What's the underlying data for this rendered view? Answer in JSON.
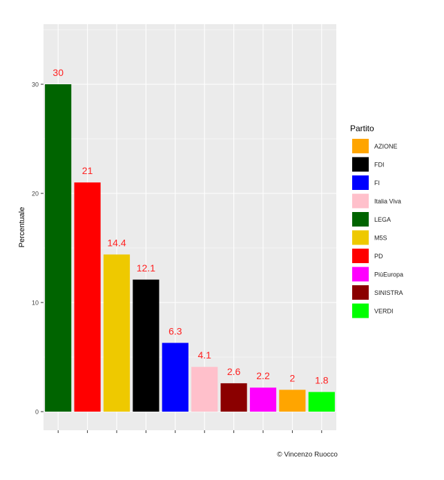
{
  "chart_data": {
    "type": "bar",
    "categories": [
      "LEGA",
      "PD",
      "M5S",
      "FDI",
      "FI",
      "Italia Viva",
      "SINISTRA",
      "PiùEuropa",
      "AZIONE",
      "VERDI"
    ],
    "values": [
      30,
      21,
      14.4,
      12.1,
      6.3,
      4.1,
      2.6,
      2.2,
      2,
      1.8
    ],
    "data_labels": [
      "30",
      "21",
      "14.4",
      "12.1",
      "6.3",
      "4.1",
      "2.6",
      "2.2",
      "2",
      "1.8"
    ],
    "bar_colors": [
      "#006400",
      "#ff0000",
      "#eec900",
      "#000000",
      "#0000ff",
      "#ffc0cb",
      "#8b0000",
      "#ff00ff",
      "#ffa500",
      "#00ff00"
    ],
    "xlabel": "",
    "ylabel": "Percentuale",
    "ylim": [
      0,
      35
    ],
    "yticks": [
      0,
      10,
      20,
      30
    ],
    "ytick_labels": [
      "0",
      "10",
      "20",
      "30"
    ],
    "grid": true,
    "label_color": "#ff2020",
    "legend": {
      "title": "Partito",
      "position": "right",
      "entries": [
        {
          "label": "AZIONE",
          "color": "#ffa500"
        },
        {
          "label": "FDI",
          "color": "#000000"
        },
        {
          "label": "FI",
          "color": "#0000ff"
        },
        {
          "label": "Italia Viva",
          "color": "#ffc0cb"
        },
        {
          "label": "LEGA",
          "color": "#006400"
        },
        {
          "label": "M5S",
          "color": "#eec900"
        },
        {
          "label": "PD",
          "color": "#ff0000"
        },
        {
          "label": "PiùEuropa",
          "color": "#ff00ff"
        },
        {
          "label": "SINISTRA",
          "color": "#8b0000"
        },
        {
          "label": "VERDI",
          "color": "#00ff00"
        }
      ]
    }
  },
  "credit": "© Vincenzo Ruocco"
}
